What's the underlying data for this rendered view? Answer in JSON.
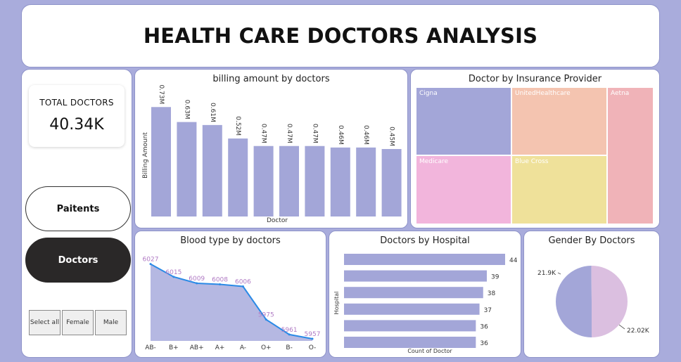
{
  "header": {
    "title": "HEALTH CARE DOCTORS ANALYSIS"
  },
  "kpi": {
    "label": "TOTAL DOCTORS",
    "value": "40.34K"
  },
  "nav": {
    "patients_label": "Paitents",
    "doctors_label": "Doctors"
  },
  "slicer": {
    "select_all": "Select all",
    "female": "Female",
    "male": "Male"
  },
  "billing": {
    "title": "billing amount by doctors",
    "chart_data": {
      "type": "bar",
      "xlabel": "Doctor",
      "ylabel": "Billing Amount",
      "values": [
        0.73,
        0.63,
        0.61,
        0.52,
        0.47,
        0.47,
        0.47,
        0.46,
        0.46,
        0.45
      ],
      "data_labels": [
        "0.73M",
        "0.63M",
        "0.61M",
        "0.52M",
        "0.47M",
        "0.47M",
        "0.47M",
        "0.46M",
        "0.46M",
        "0.45M"
      ],
      "ylim": [
        0,
        0.75
      ],
      "color": "#a3a6d8"
    }
  },
  "insurance": {
    "title": "Doctor by Insurance Provider",
    "chart_data": {
      "type": "treemap",
      "items": [
        {
          "name": "Cigna",
          "color": "#a3a6d8"
        },
        {
          "name": "UnitedHealthcare",
          "color": "#f4c4b0"
        },
        {
          "name": "Aetna",
          "color": "#f0b3b8"
        },
        {
          "name": "Medicare",
          "color": "#f2b5dc"
        },
        {
          "name": "Blue Cross",
          "color": "#efe19a"
        }
      ]
    }
  },
  "blood": {
    "title": "Blood type by doctors",
    "chart_data": {
      "type": "area",
      "categories": [
        "AB-",
        "B+",
        "AB+",
        "A+",
        "A-",
        "O+",
        "B-",
        "O-"
      ],
      "values": [
        6027,
        6015,
        6009,
        6008,
        6006,
        5975,
        5961,
        5957
      ],
      "data_labels": [
        "6027",
        "6015",
        "6009",
        "6008",
        "6006",
        "5975",
        "5961",
        "5957"
      ],
      "ylim": [
        5955,
        6032
      ],
      "line_color": "#2b8ae6",
      "fill_color": "#b5b8e2",
      "label_color": "#b07ac4"
    }
  },
  "hospital": {
    "title": "Doctors by Hospital",
    "chart_data": {
      "type": "bar",
      "orientation": "horizontal",
      "xlabel": "Count of Doctor",
      "ylabel": "Hospital",
      "values": [
        44,
        39,
        38,
        37,
        36,
        36
      ],
      "data_labels": [
        "44",
        "39",
        "38",
        "37",
        "36",
        "36"
      ],
      "xlim": [
        0,
        44
      ],
      "color": "#a3a6d8"
    }
  },
  "gender": {
    "title": "Gender By Doctors",
    "chart_data": {
      "type": "pie",
      "values": [
        21.9,
        22.02
      ],
      "data_labels": [
        "21.9K",
        "22.02K"
      ],
      "colors": [
        "#a3a6d8",
        "#dbbfe0"
      ]
    }
  }
}
